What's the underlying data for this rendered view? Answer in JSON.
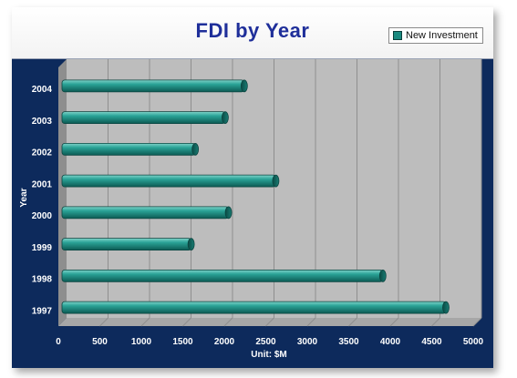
{
  "chart_data": {
    "type": "bar",
    "orientation": "horizontal",
    "title": "FDI by Year",
    "categories": [
      "1997",
      "1998",
      "1999",
      "2000",
      "2001",
      "2002",
      "2003",
      "2004"
    ],
    "series": [
      {
        "name": "New Investment",
        "values": [
          4670,
          3910,
          1600,
          2050,
          2620,
          1650,
          2010,
          2240
        ]
      }
    ],
    "xlabel": "Unit: $M",
    "ylabel": "Year",
    "xlim": [
      0,
      5000
    ],
    "xticks": [
      "0",
      "500",
      "1000",
      "1500",
      "2000",
      "2500",
      "3000",
      "3500",
      "4000",
      "4500",
      "5000"
    ],
    "grid": true,
    "legend": "top-right"
  },
  "colors": {
    "bar": "#1a8a80",
    "background": "#0d2a5c",
    "plot_floor": "#bdbdbd",
    "title": "#1f2f9a"
  }
}
